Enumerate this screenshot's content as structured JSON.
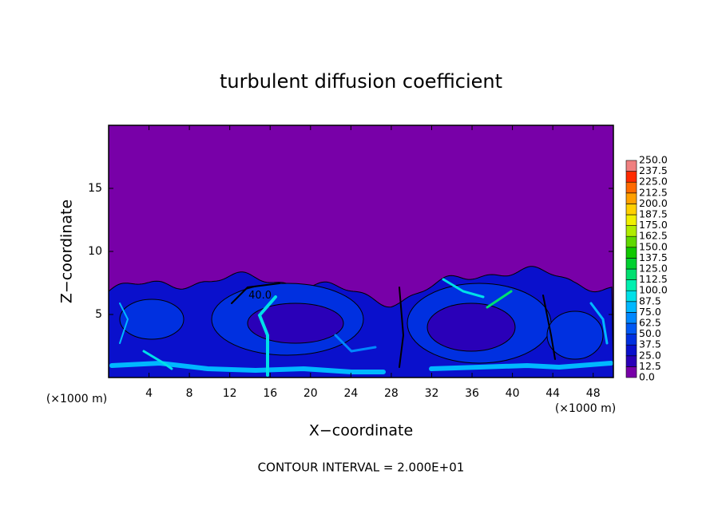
{
  "chart_data": {
    "type": "contour",
    "title": "turbulent diffusion coefficient",
    "xlabel": "X−coordinate",
    "ylabel": "Z−coordinate",
    "x_unit_label": "(×1000 m)",
    "footer": "CONTOUR INTERVAL = 2.000E+01",
    "xlim": [
      0,
      50
    ],
    "ylim": [
      0,
      20
    ],
    "xticks": [
      4,
      8,
      12,
      16,
      20,
      24,
      28,
      32,
      36,
      40,
      44,
      48
    ],
    "yticks": [
      5,
      10,
      15
    ],
    "contour_labels": [
      {
        "text": "40.0",
        "x": 15,
        "z": 6.5
      }
    ],
    "levels": [
      {
        "value": 0,
        "label": "0.0"
      },
      {
        "value": 12.5,
        "label": "12.5"
      },
      {
        "value": 25,
        "label": "25.0"
      },
      {
        "value": 37.5,
        "label": "37.5"
      },
      {
        "value": 50,
        "label": "50.0"
      },
      {
        "value": 62.5,
        "label": "62.5"
      },
      {
        "value": 75,
        "label": "75.0"
      },
      {
        "value": 87.5,
        "label": "87.5"
      },
      {
        "value": 100,
        "label": "100.0"
      },
      {
        "value": 112.5,
        "label": "112.5"
      },
      {
        "value": 125,
        "label": "125.0"
      },
      {
        "value": 137.5,
        "label": "137.5"
      },
      {
        "value": 150,
        "label": "150.0"
      },
      {
        "value": 162.5,
        "label": "162.5"
      },
      {
        "value": 175,
        "label": "175.0"
      },
      {
        "value": 187.5,
        "label": "187.5"
      },
      {
        "value": 200,
        "label": "200.0"
      },
      {
        "value": 212.5,
        "label": "212.5"
      },
      {
        "value": 225,
        "label": "225.0"
      },
      {
        "value": 237.5,
        "label": "237.5"
      },
      {
        "value": 250,
        "label": "250.0"
      }
    ],
    "level_colors": [
      "#7800a8",
      "#2a00b8",
      "#0a10cc",
      "#0030e0",
      "#0058f4",
      "#0088ff",
      "#00b8ff",
      "#00e0e8",
      "#00f0b0",
      "#00e070",
      "#00d030",
      "#10c800",
      "#60d800",
      "#b0ec00",
      "#f0f000",
      "#ffd000",
      "#ffa000",
      "#ff6a00",
      "#ff2a00",
      "#f08080"
    ]
  }
}
